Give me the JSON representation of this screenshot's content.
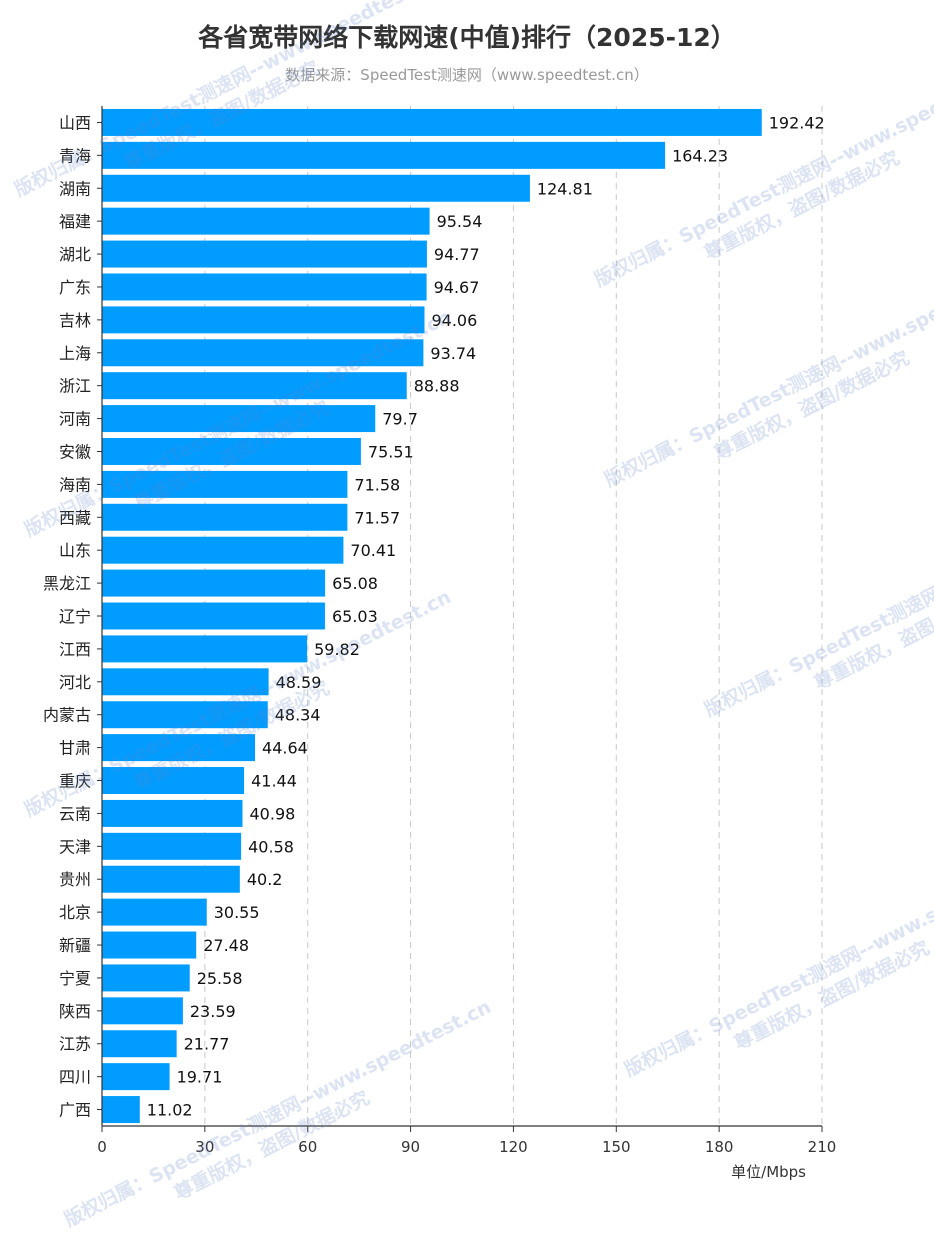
{
  "chart_data": {
    "type": "bar",
    "orientation": "horizontal",
    "title": "各省宽带网络下载网速(中值)排行（2025-12）",
    "subtitle": "数据来源：SpeedTest测速网（www.speedtest.cn）",
    "xlabel": "单位/Mbps",
    "ylabel": "",
    "xlim": [
      0,
      210
    ],
    "x_ticks": [
      "0",
      "30",
      "60",
      "90",
      "120",
      "150",
      "180",
      "210"
    ],
    "grid": "vertical dashed",
    "bar_color": "#009cff",
    "categories": [
      "山西",
      "青海",
      "湖南",
      "福建",
      "湖北",
      "广东",
      "吉林",
      "上海",
      "浙江",
      "河南",
      "安徽",
      "海南",
      "西藏",
      "山东",
      "黑龙江",
      "辽宁",
      "江西",
      "河北",
      "内蒙古",
      "甘肃",
      "重庆",
      "云南",
      "天津",
      "贵州",
      "北京",
      "新疆",
      "宁夏",
      "陕西",
      "江苏",
      "四川",
      "广西"
    ],
    "values": [
      192.42,
      164.23,
      124.81,
      95.54,
      94.77,
      94.67,
      94.06,
      93.74,
      88.88,
      79.7,
      75.51,
      71.58,
      71.57,
      70.41,
      65.08,
      65.03,
      59.82,
      48.59,
      48.34,
      44.64,
      41.44,
      40.98,
      40.58,
      40.2,
      30.55,
      27.48,
      25.58,
      23.59,
      21.77,
      19.71,
      11.02
    ],
    "value_labels": [
      "192.42",
      "164.23",
      "124.81",
      "95.54",
      "94.77",
      "94.67",
      "94.06",
      "93.74",
      "88.88",
      "79.7",
      "75.51",
      "71.58",
      "71.57",
      "70.41",
      "65.08",
      "65.03",
      "59.82",
      "48.59",
      "48.34",
      "44.64",
      "41.44",
      "40.98",
      "40.58",
      "40.2",
      "30.55",
      "27.48",
      "25.58",
      "23.59",
      "21.77",
      "19.71",
      "11.02"
    ]
  },
  "watermark": {
    "line1": "版权归属：SpeedTest测速网--www.speedtest.cn",
    "line2": "尊重版权，盗图/数据必究"
  }
}
